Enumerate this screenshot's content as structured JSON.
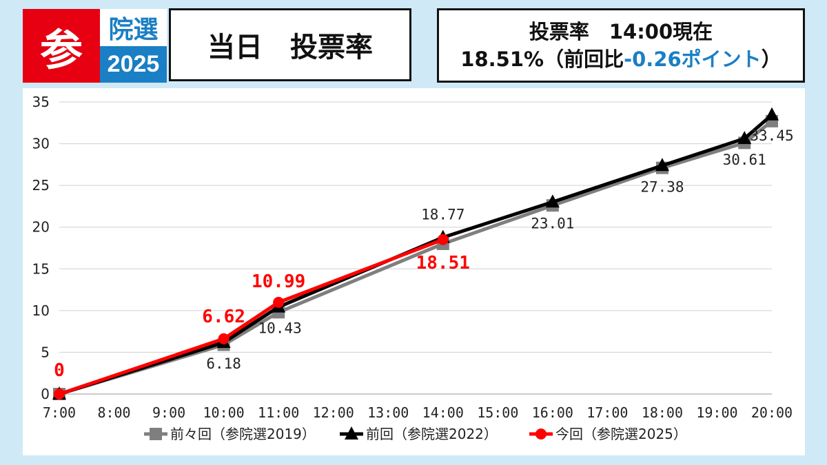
{
  "header": {
    "logo_char": "参",
    "logo_top": "院選",
    "logo_year": "2025",
    "title": "当日　投票率",
    "info_line1": "投票率　14:00現在",
    "info_line2_prefix": "18.51%（前回比",
    "info_line2_diff": "-0.26ポイント",
    "info_line2_suffix": "）"
  },
  "colors": {
    "series_2019": "#7f7f7f",
    "series_2022": "#000000",
    "series_2025": "#ff0000",
    "accent_red": "#e60012",
    "accent_blue": "#1a7fc4"
  },
  "chart_data": {
    "type": "line",
    "title": "",
    "xlabel": "",
    "ylabel": "",
    "ylim": [
      0,
      35
    ],
    "yticks": [
      "0",
      "5",
      "10",
      "15",
      "20",
      "25",
      "30",
      "35"
    ],
    "grid": true,
    "legend_position": "bottom",
    "categories": [
      "7:00",
      "8:00",
      "9:00",
      "10:00",
      "11:00",
      "12:00",
      "13:00",
      "14:00",
      "15:00",
      "16:00",
      "17:00",
      "18:00",
      "19:00",
      "20:00"
    ],
    "series": [
      {
        "name": "前々回（参院選2019）",
        "color": "#7f7f7f",
        "marker": "square",
        "points": [
          {
            "x": "7:00",
            "y": 0
          },
          {
            "x": "10:00",
            "y": 5.9
          },
          {
            "x": "11:00",
            "y": 9.8
          },
          {
            "x": "14:00",
            "y": 18.0
          },
          {
            "x": "16:00",
            "y": 22.6
          },
          {
            "x": "18:00",
            "y": 27.1
          },
          {
            "x": "19:30",
            "y": 30.1
          },
          {
            "x": "20:00",
            "y": 32.7
          }
        ]
      },
      {
        "name": "前回（参院選2022）",
        "color": "#000000",
        "marker": "triangle",
        "points": [
          {
            "x": "7:00",
            "y": 0,
            "label": ""
          },
          {
            "x": "10:00",
            "y": 6.18,
            "label": "6.18"
          },
          {
            "x": "11:00",
            "y": 10.43,
            "label": "10.43"
          },
          {
            "x": "14:00",
            "y": 18.77,
            "label": "18.77"
          },
          {
            "x": "16:00",
            "y": 23.01,
            "label": "23.01"
          },
          {
            "x": "18:00",
            "y": 27.38,
            "label": "27.38"
          },
          {
            "x": "19:30",
            "y": 30.61,
            "label": "30.61"
          },
          {
            "x": "20:00",
            "y": 33.45,
            "label": "33.45"
          }
        ]
      },
      {
        "name": "今回（参院選2025）",
        "color": "#ff0000",
        "marker": "circle",
        "points": [
          {
            "x": "7:00",
            "y": 0,
            "label": "0"
          },
          {
            "x": "10:00",
            "y": 6.62,
            "label": "6.62"
          },
          {
            "x": "11:00",
            "y": 10.99,
            "label": "10.99"
          },
          {
            "x": "14:00",
            "y": 18.51,
            "label": "18.51"
          }
        ]
      }
    ]
  }
}
